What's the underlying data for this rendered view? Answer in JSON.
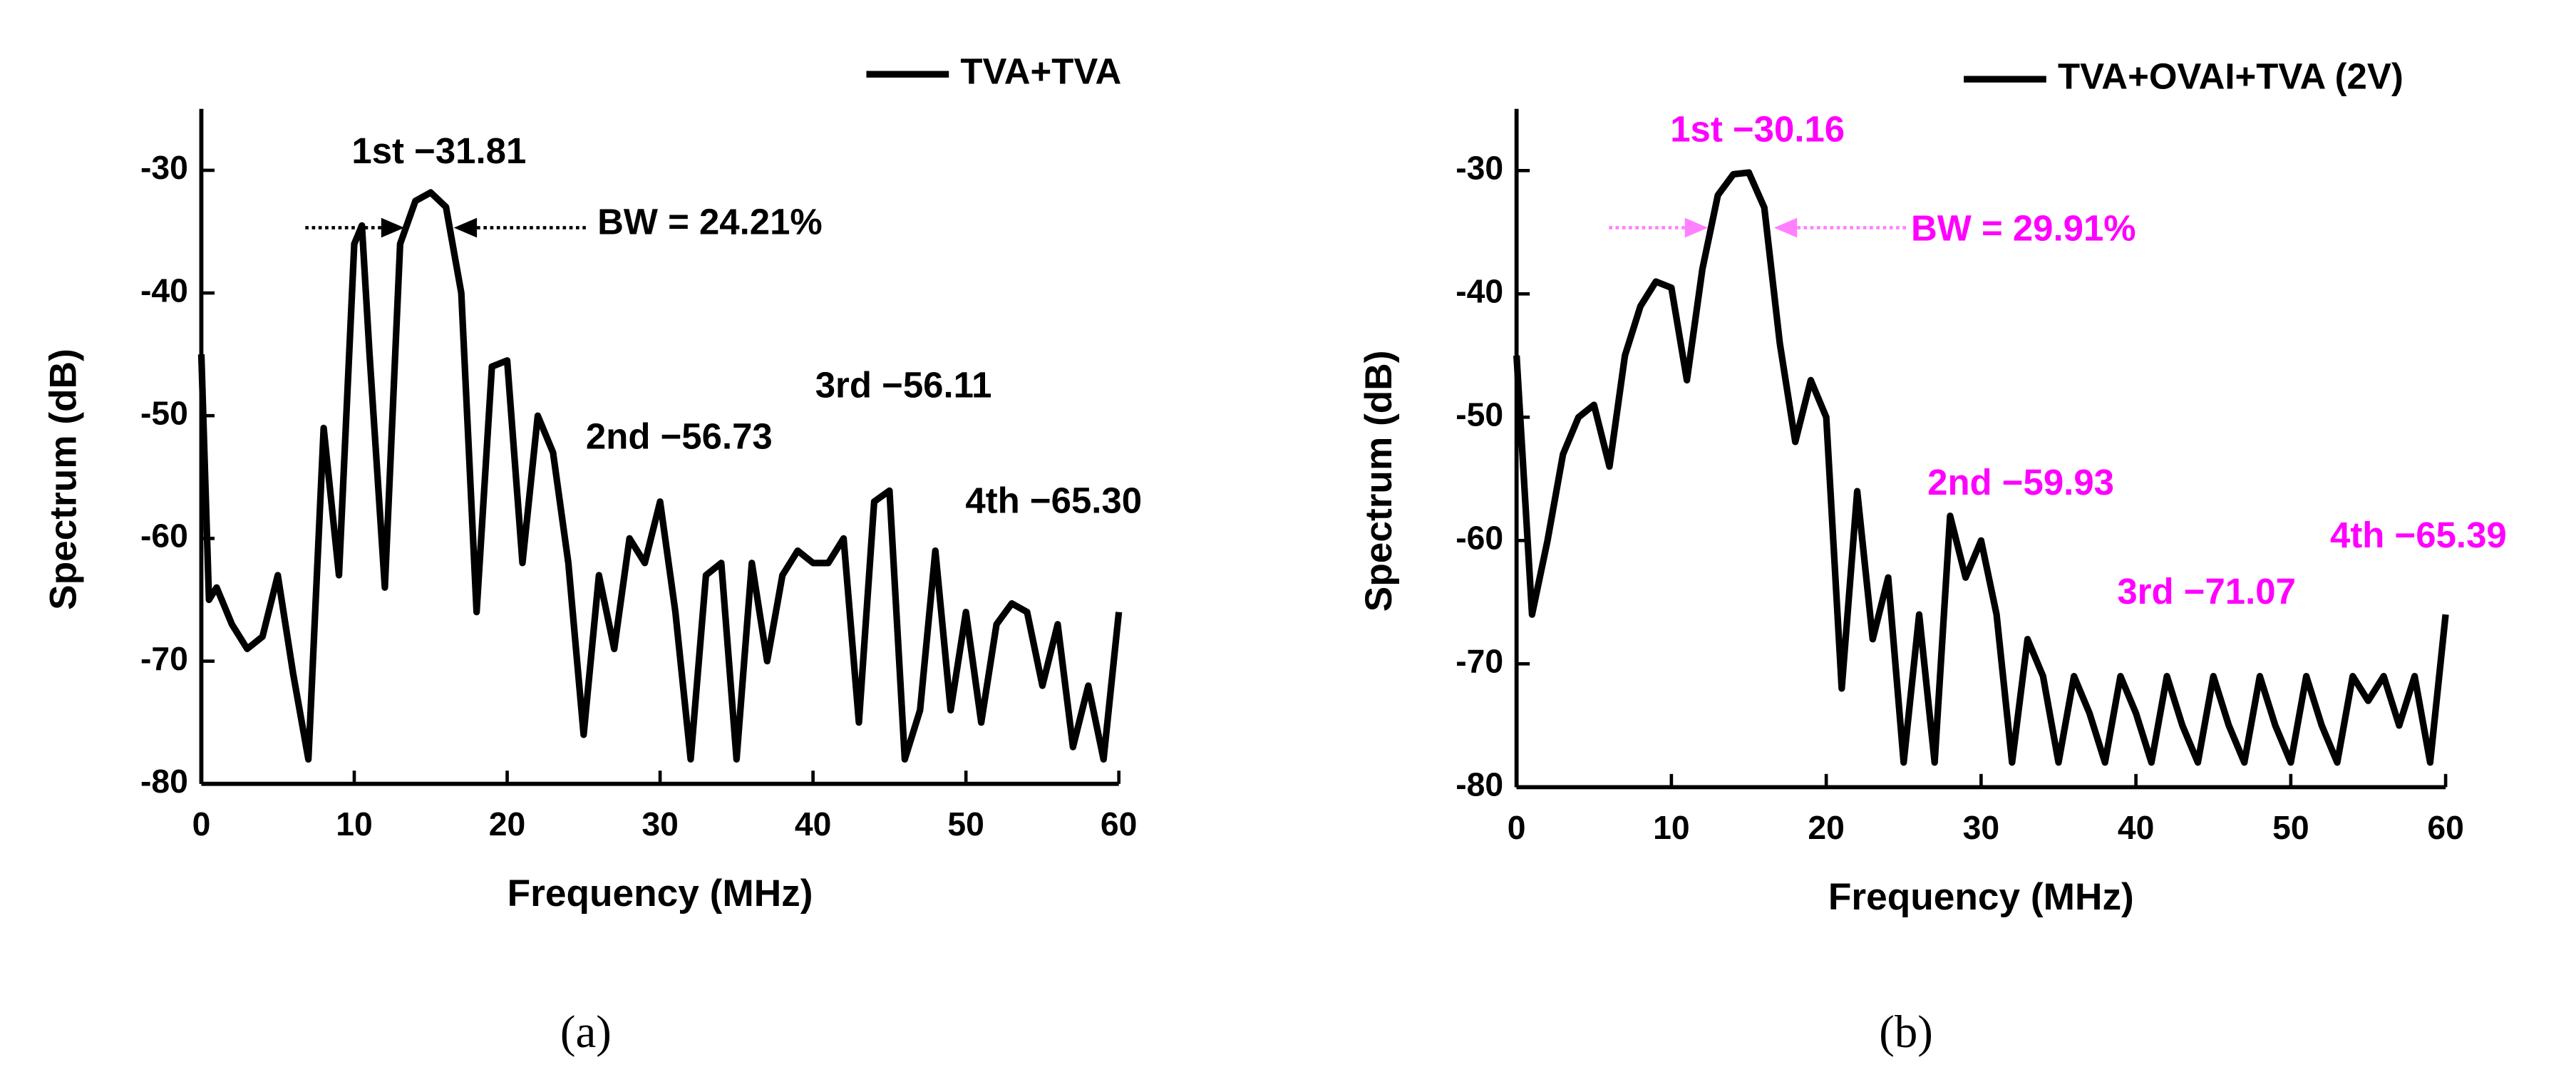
{
  "chart_data": [
    {
      "type": "line",
      "x_label": "Frequency (MHz)",
      "y_label": "Spectrum (dB)",
      "xlim": [
        0,
        60
      ],
      "ylim": [
        -80,
        -25
      ],
      "xticks": [
        0,
        10,
        20,
        30,
        40,
        50,
        60
      ],
      "yticks": [
        -80,
        -70,
        -60,
        -50,
        -40,
        -30
      ],
      "legend": "upper right",
      "annotation_color": "#000000",
      "x": [
        0,
        0.5,
        1,
        2,
        3,
        4,
        5,
        6,
        7,
        8,
        9,
        10,
        10.5,
        11,
        12,
        13,
        14,
        15,
        16,
        17,
        18,
        19,
        20,
        21,
        22,
        23,
        24,
        25,
        26,
        27,
        28,
        29,
        30,
        31,
        32,
        33,
        34,
        35,
        36,
        37,
        38,
        39,
        40,
        41,
        42,
        43,
        44,
        45,
        46,
        47,
        48,
        49,
        50,
        51,
        52,
        53,
        54,
        55,
        56,
        57,
        58,
        59,
        60
      ],
      "series": [
        {
          "name": "TVA+TVA",
          "color": "#000000",
          "values": [
            -45,
            -65,
            -64,
            -67,
            -69,
            -68,
            -63,
            -71,
            -78,
            -51,
            -63,
            -36,
            -34.5,
            -45,
            -64,
            -36,
            -32.5,
            -31.81,
            -33,
            -40,
            -66,
            -46,
            -45.5,
            -62,
            -50,
            -53,
            -62,
            -76,
            -63,
            -69,
            -60,
            -62,
            -57,
            -66,
            -78,
            -63,
            -62,
            -78,
            -62,
            -70,
            -63,
            -61,
            -62,
            -62,
            -60,
            -75,
            -57,
            -56.11,
            -78,
            -74,
            -61,
            -74,
            -66,
            -75,
            -67,
            -65.3,
            -66,
            -72,
            -67,
            -77,
            -72,
            -78,
            -66
          ]
        }
      ],
      "annotations": [
        {
          "text": "1st −31.81"
        },
        {
          "text": "BW = 24.21%"
        },
        {
          "text": "2nd −56.73"
        },
        {
          "text": "3rd −56.11"
        },
        {
          "text": "4th −65.30"
        }
      ]
    },
    {
      "type": "line",
      "x_label": "Frequency (MHz)",
      "y_label": "Spectrum (dB)",
      "xlim": [
        0,
        60
      ],
      "ylim": [
        -80,
        -25
      ],
      "xticks": [
        0,
        10,
        20,
        30,
        40,
        50,
        60
      ],
      "yticks": [
        -80,
        -70,
        -60,
        -50,
        -40,
        -30
      ],
      "legend": "upper right",
      "annotation_color": "#ff00ff",
      "x": [
        0,
        1,
        2,
        3,
        4,
        5,
        6,
        7,
        8,
        9,
        10,
        11,
        12,
        13,
        14,
        15,
        16,
        17,
        18,
        19,
        20,
        21,
        22,
        23,
        24,
        25,
        26,
        27,
        28,
        29,
        30,
        31,
        32,
        33,
        34,
        35,
        36,
        37,
        38,
        39,
        40,
        41,
        42,
        43,
        44,
        45,
        46,
        47,
        48,
        49,
        50,
        51,
        52,
        53,
        54,
        55,
        56,
        57,
        58,
        59,
        60
      ],
      "series": [
        {
          "name": "TVA+OVAI+TVA (2V)",
          "color": "#000000",
          "values": [
            -45,
            -66,
            -60,
            -53,
            -50,
            -49,
            -54,
            -45,
            -41,
            -39,
            -39.5,
            -47,
            -38,
            -32,
            -30.3,
            -30.16,
            -33,
            -44,
            -52,
            -47,
            -50,
            -72,
            -56,
            -68,
            -63,
            -78,
            -66,
            -78,
            -58,
            -63,
            -60,
            -66,
            -78,
            -68,
            -71,
            -78,
            -71,
            -74,
            -78,
            -71,
            -74,
            -78,
            -71,
            -75,
            -78,
            -71,
            -75,
            -78,
            -71,
            -75,
            -78,
            -71,
            -75,
            -78,
            -71,
            -73,
            -71,
            -75,
            -71,
            -78,
            -66
          ]
        }
      ],
      "annotations": [
        {
          "text": "1st −30.16"
        },
        {
          "text": "BW = 29.91%"
        },
        {
          "text": "2nd −59.93"
        },
        {
          "text": "3rd −71.07"
        },
        {
          "text": "4th −65.39"
        }
      ]
    }
  ],
  "captions": [
    "(a)",
    "(b)"
  ]
}
